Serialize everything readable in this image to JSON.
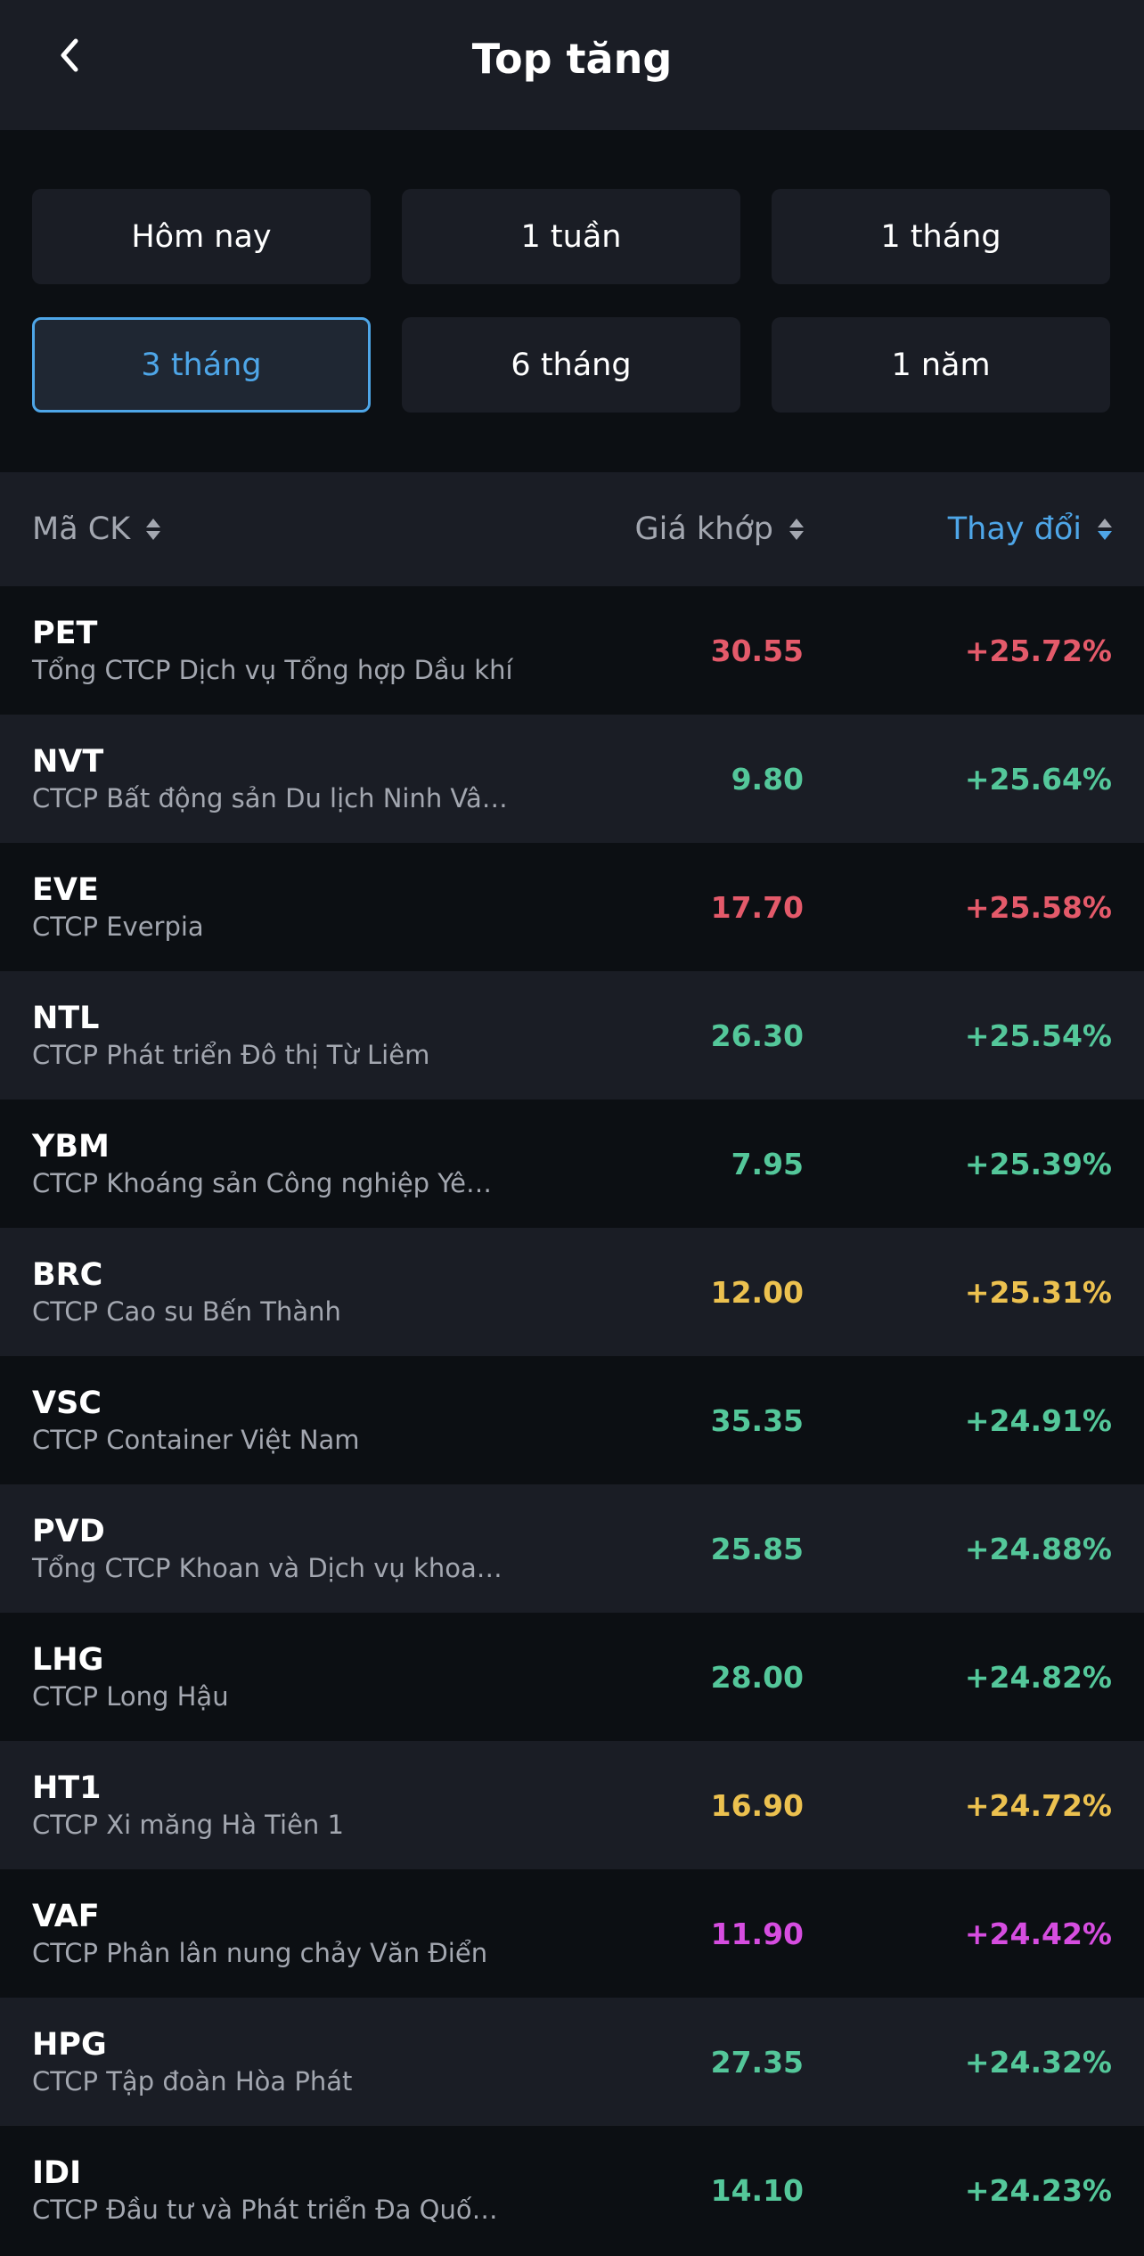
{
  "header": {
    "title": "Top tăng",
    "back_icon": "chevron-left-icon"
  },
  "filters": [
    {
      "label": "Hôm nay",
      "active": false
    },
    {
      "label": "1 tuần",
      "active": false
    },
    {
      "label": "1 tháng",
      "active": false
    },
    {
      "label": "3 tháng",
      "active": true
    },
    {
      "label": "6 tháng",
      "active": false
    },
    {
      "label": "1 năm",
      "active": false
    }
  ],
  "columns": {
    "symbol": "Mã CK",
    "price": "Giá khớp",
    "change": "Thay đổi"
  },
  "colors": {
    "red": "#e45a6a",
    "green": "#54c79a",
    "yellow": "#ecc14f",
    "purple": "#d64de0",
    "accent": "#4ea6e8"
  },
  "rows": [
    {
      "symbol": "PET",
      "name": "Tổng CTCP Dịch vụ Tổng hợp Dầu khí",
      "price": "30.55",
      "change": "+25.72%",
      "color": "red"
    },
    {
      "symbol": "NVT",
      "name": "CTCP Bất động sản Du lịch Ninh Vâ…",
      "price": "9.80",
      "change": "+25.64%",
      "color": "green"
    },
    {
      "symbol": "EVE",
      "name": "CTCP Everpia",
      "price": "17.70",
      "change": "+25.58%",
      "color": "red"
    },
    {
      "symbol": "NTL",
      "name": "CTCP Phát triển Đô thị Từ Liêm",
      "price": "26.30",
      "change": "+25.54%",
      "color": "green"
    },
    {
      "symbol": "YBM",
      "name": "CTCP Khoáng sản Công nghiệp Yê…",
      "price": "7.95",
      "change": "+25.39%",
      "color": "green"
    },
    {
      "symbol": "BRC",
      "name": "CTCP Cao su Bến Thành",
      "price": "12.00",
      "change": "+25.31%",
      "color": "yellow"
    },
    {
      "symbol": "VSC",
      "name": "CTCP Container Việt Nam",
      "price": "35.35",
      "change": "+24.91%",
      "color": "green"
    },
    {
      "symbol": "PVD",
      "name": "Tổng CTCP Khoan và Dịch vụ khoa…",
      "price": "25.85",
      "change": "+24.88%",
      "color": "green"
    },
    {
      "symbol": "LHG",
      "name": "CTCP Long Hậu",
      "price": "28.00",
      "change": "+24.82%",
      "color": "green"
    },
    {
      "symbol": "HT1",
      "name": "CTCP Xi măng Hà Tiên 1",
      "price": "16.90",
      "change": "+24.72%",
      "color": "yellow"
    },
    {
      "symbol": "VAF",
      "name": "CTCP Phân lân nung chảy Văn Điển",
      "price": "11.90",
      "change": "+24.42%",
      "color": "purple"
    },
    {
      "symbol": "HPG",
      "name": "CTCP Tập đoàn Hòa Phát",
      "price": "27.35",
      "change": "+24.32%",
      "color": "green"
    },
    {
      "symbol": "IDI",
      "name": "CTCP Đầu tư và Phát triển Đa Quố…",
      "price": "14.10",
      "change": "+24.23%",
      "color": "green"
    }
  ]
}
